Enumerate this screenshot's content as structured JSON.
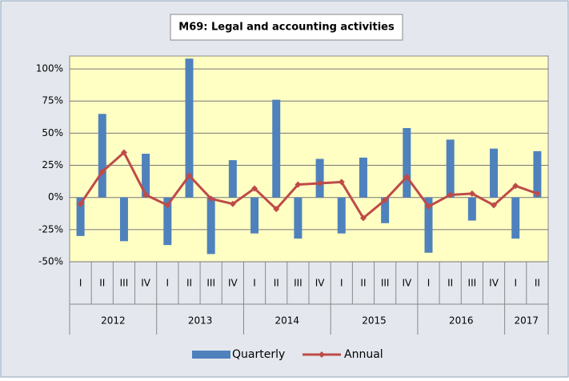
{
  "chart_data": {
    "type": "bar_line",
    "title": "M69: Legal and accounting activities",
    "year_groups": [
      {
        "label": "2012",
        "quarters": [
          "I",
          "II",
          "III",
          "IV"
        ]
      },
      {
        "label": "2013",
        "quarters": [
          "I",
          "II",
          "III",
          "IV"
        ]
      },
      {
        "label": "2014",
        "quarters": [
          "I",
          "II",
          "III",
          "IV"
        ]
      },
      {
        "label": "2015",
        "quarters": [
          "I",
          "II",
          "III",
          "IV"
        ]
      },
      {
        "label": "2016",
        "quarters": [
          "I",
          "II",
          "III",
          "IV"
        ]
      },
      {
        "label": "2017",
        "quarters": [
          "I",
          "II"
        ]
      }
    ],
    "series": [
      {
        "name": "Quarterly",
        "type": "bar",
        "color": "#4f81bd",
        "values": [
          -30,
          65,
          -34,
          34,
          -37,
          108,
          -44,
          29,
          -28,
          76,
          -32,
          30,
          -28,
          31,
          -20,
          54,
          -43,
          45,
          -18,
          38,
          -32,
          36
        ]
      },
      {
        "name": "Annual",
        "type": "line",
        "color": "#be4b48",
        "values": [
          -5,
          20,
          35,
          2,
          -6,
          17,
          -1,
          -5,
          7,
          -9,
          10,
          11,
          12,
          -16,
          -2,
          16,
          -7,
          2,
          3,
          -6,
          9,
          3
        ]
      }
    ],
    "ylim": [
      -50,
      110
    ],
    "yticks": [
      {
        "value": -50,
        "label": "-50%"
      },
      {
        "value": -25,
        "label": "-25%"
      },
      {
        "value": 0,
        "label": "0%"
      },
      {
        "value": 25,
        "label": "25%"
      },
      {
        "value": 50,
        "label": "50%"
      },
      {
        "value": 75,
        "label": "75%"
      },
      {
        "value": 100,
        "label": "100%"
      }
    ],
    "grid": true
  }
}
